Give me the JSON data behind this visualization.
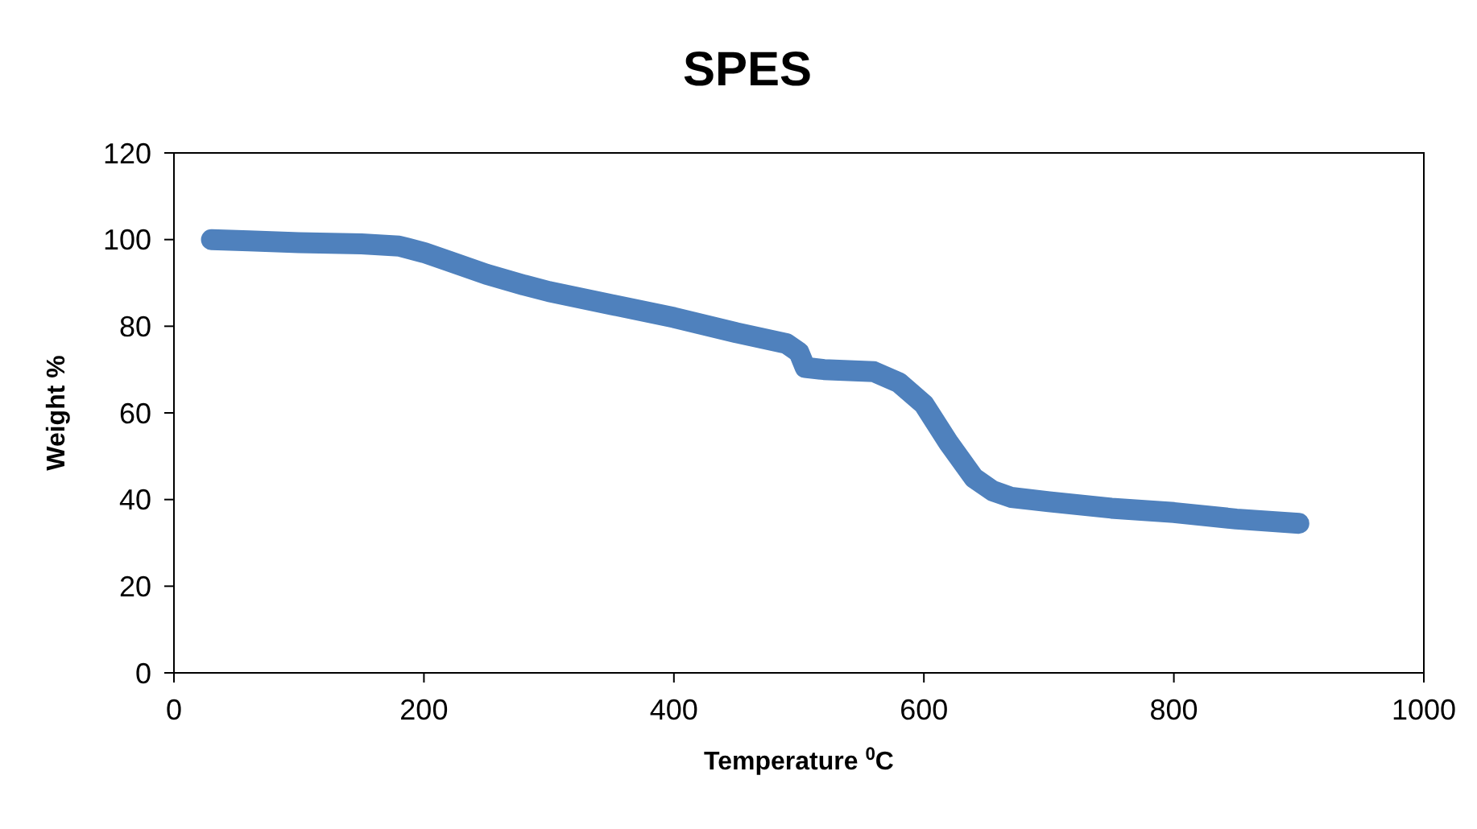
{
  "chart_data": {
    "type": "line",
    "title": "SPES",
    "xlabel": "Temperature $^{0}$C",
    "ylabel": "Weight %",
    "x": [
      30,
      60,
      100,
      150,
      180,
      200,
      220,
      250,
      280,
      300,
      350,
      400,
      450,
      490,
      500,
      505,
      520,
      560,
      580,
      600,
      620,
      640,
      655,
      670,
      700,
      750,
      800,
      850,
      900
    ],
    "series": [
      {
        "color": "#4f81bd",
        "values": [
          100,
          99.7,
          99.3,
          99,
          98.5,
          97,
          95,
          92,
          89.5,
          88,
          85,
          82,
          78.5,
          76,
          74,
          70.5,
          70,
          69.5,
          67,
          62,
          53,
          45,
          42,
          40.5,
          39.5,
          38,
          37,
          35.5,
          34.5
        ]
      }
    ],
    "xlim": [
      0,
      1000
    ],
    "xticks": [
      0,
      200,
      400,
      600,
      800,
      1000
    ],
    "ylim": [
      0,
      120
    ],
    "yticks": [
      0,
      20,
      40,
      60,
      80,
      100,
      120
    ],
    "grid": false,
    "legend": false,
    "marker": "none",
    "line_style": "solid"
  }
}
